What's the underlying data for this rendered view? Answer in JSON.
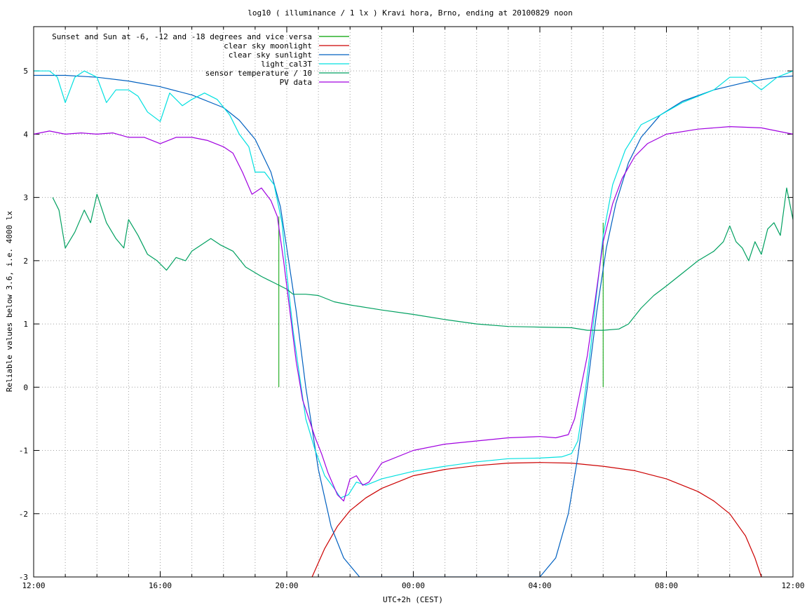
{
  "chart_data": {
    "type": "line",
    "title": "log10 ( illuminance / 1 lx ) Kravi hora, Brno, ending at 20100829 noon",
    "xlabel": "UTC+2h (CEST)",
    "ylabel": "Reliable values below 3.6, i.e. 4000 lx",
    "xlim": [
      12,
      36
    ],
    "ylim": [
      -3,
      5.7
    ],
    "x_tick_labels": [
      {
        "x": 12,
        "label": "12:00"
      },
      {
        "x": 16,
        "label": "16:00"
      },
      {
        "x": 20,
        "label": "20:00"
      },
      {
        "x": 24,
        "label": "00:00"
      },
      {
        "x": 28,
        "label": "04:00"
      },
      {
        "x": 32,
        "label": "08:00"
      },
      {
        "x": 36,
        "label": "12:00"
      }
    ],
    "x_minor_ticks": [
      13,
      14,
      15,
      17,
      18,
      19,
      21,
      22,
      23,
      25,
      26,
      27,
      29,
      30,
      31,
      33,
      34,
      35
    ],
    "y_ticks": [
      -3,
      -2,
      -1,
      0,
      1,
      2,
      3,
      4,
      5
    ],
    "grid": true,
    "legend_position": "top-left",
    "series": [
      {
        "name": "Sunset and Sun at -6, -12 and -18 degrees and vice versa",
        "color": "#00a000",
        "style": "impulses",
        "points": [
          [
            19.75,
            2.7
          ],
          [
            21.0,
            0
          ],
          [
            21.75,
            0
          ],
          [
            28.15,
            0
          ],
          [
            28.85,
            0
          ],
          [
            30.0,
            2.6
          ]
        ]
      },
      {
        "name": "clear sky moonlight",
        "color": "#cc0000",
        "points": [
          [
            20.8,
            -3.0
          ],
          [
            21.2,
            -2.55
          ],
          [
            21.6,
            -2.2
          ],
          [
            22.0,
            -1.95
          ],
          [
            22.5,
            -1.75
          ],
          [
            23.0,
            -1.6
          ],
          [
            23.5,
            -1.5
          ],
          [
            24.0,
            -1.4
          ],
          [
            25.0,
            -1.3
          ],
          [
            26.0,
            -1.24
          ],
          [
            27.0,
            -1.2
          ],
          [
            28.0,
            -1.19
          ],
          [
            29.0,
            -1.2
          ],
          [
            30.0,
            -1.25
          ],
          [
            31.0,
            -1.32
          ],
          [
            32.0,
            -1.45
          ],
          [
            33.0,
            -1.65
          ],
          [
            33.5,
            -1.8
          ],
          [
            34.0,
            -2.0
          ],
          [
            34.5,
            -2.35
          ],
          [
            34.8,
            -2.7
          ],
          [
            35.0,
            -3.0
          ]
        ]
      },
      {
        "name": "clear sky sunlight",
        "color": "#0060c0",
        "points": [
          [
            12.0,
            4.93
          ],
          [
            13.0,
            4.93
          ],
          [
            14.0,
            4.9
          ],
          [
            15.0,
            4.84
          ],
          [
            16.0,
            4.75
          ],
          [
            17.0,
            4.62
          ],
          [
            18.0,
            4.42
          ],
          [
            18.5,
            4.22
          ],
          [
            19.0,
            3.92
          ],
          [
            19.5,
            3.4
          ],
          [
            19.8,
            2.85
          ],
          [
            20.0,
            2.2
          ],
          [
            20.3,
            1.2
          ],
          [
            20.6,
            0.0
          ],
          [
            21.0,
            -1.3
          ],
          [
            21.4,
            -2.2
          ],
          [
            21.8,
            -2.7
          ],
          [
            22.3,
            -3.0
          ],
          [
            28.0,
            -3.0
          ],
          [
            28.5,
            -2.7
          ],
          [
            28.9,
            -2.0
          ],
          [
            29.2,
            -1.1
          ],
          [
            29.5,
            0.0
          ],
          [
            29.8,
            1.2
          ],
          [
            30.1,
            2.2
          ],
          [
            30.4,
            2.9
          ],
          [
            30.8,
            3.55
          ],
          [
            31.2,
            3.95
          ],
          [
            31.8,
            4.3
          ],
          [
            32.5,
            4.52
          ],
          [
            33.5,
            4.7
          ],
          [
            34.5,
            4.82
          ],
          [
            35.5,
            4.9
          ],
          [
            36.0,
            4.92
          ]
        ]
      },
      {
        "name": "light_cal3T",
        "color": "#00e0e0",
        "points": [
          [
            12.0,
            5.0
          ],
          [
            12.5,
            5.0
          ],
          [
            12.75,
            4.9
          ],
          [
            13.0,
            4.5
          ],
          [
            13.3,
            4.9
          ],
          [
            13.6,
            5.0
          ],
          [
            14.0,
            4.9
          ],
          [
            14.3,
            4.5
          ],
          [
            14.6,
            4.7
          ],
          [
            15.0,
            4.7
          ],
          [
            15.3,
            4.6
          ],
          [
            15.6,
            4.35
          ],
          [
            16.0,
            4.2
          ],
          [
            16.3,
            4.65
          ],
          [
            16.7,
            4.45
          ],
          [
            17.0,
            4.55
          ],
          [
            17.4,
            4.65
          ],
          [
            17.8,
            4.55
          ],
          [
            18.2,
            4.3
          ],
          [
            18.5,
            4.0
          ],
          [
            18.8,
            3.8
          ],
          [
            19.0,
            3.4
          ],
          [
            19.3,
            3.4
          ],
          [
            19.6,
            3.2
          ],
          [
            19.85,
            2.6
          ],
          [
            20.0,
            1.8
          ],
          [
            20.2,
            0.9
          ],
          [
            20.4,
            0.2
          ],
          [
            20.6,
            -0.5
          ],
          [
            20.9,
            -1.0
          ],
          [
            21.2,
            -1.4
          ],
          [
            21.5,
            -1.6
          ],
          [
            21.7,
            -1.75
          ],
          [
            21.95,
            -1.7
          ],
          [
            22.2,
            -1.5
          ],
          [
            22.5,
            -1.55
          ],
          [
            23.0,
            -1.45
          ],
          [
            24.0,
            -1.33
          ],
          [
            25.0,
            -1.25
          ],
          [
            26.0,
            -1.18
          ],
          [
            27.0,
            -1.13
          ],
          [
            28.0,
            -1.12
          ],
          [
            28.7,
            -1.1
          ],
          [
            29.0,
            -1.05
          ],
          [
            29.2,
            -0.85
          ],
          [
            29.4,
            -0.2
          ],
          [
            29.6,
            0.6
          ],
          [
            29.8,
            1.5
          ],
          [
            30.0,
            2.4
          ],
          [
            30.3,
            3.2
          ],
          [
            30.7,
            3.75
          ],
          [
            31.2,
            4.15
          ],
          [
            31.8,
            4.3
          ],
          [
            32.5,
            4.5
          ],
          [
            33.5,
            4.7
          ],
          [
            34.0,
            4.9
          ],
          [
            34.5,
            4.9
          ],
          [
            35.0,
            4.7
          ],
          [
            35.5,
            4.9
          ],
          [
            36.0,
            5.0
          ]
        ]
      },
      {
        "name": "sensor temperature / 10",
        "color": "#00a060",
        "points": [
          [
            12.6,
            3.0
          ],
          [
            12.8,
            2.8
          ],
          [
            13.0,
            2.2
          ],
          [
            13.3,
            2.45
          ],
          [
            13.6,
            2.8
          ],
          [
            13.8,
            2.6
          ],
          [
            14.0,
            3.05
          ],
          [
            14.3,
            2.6
          ],
          [
            14.6,
            2.35
          ],
          [
            14.85,
            2.2
          ],
          [
            15.0,
            2.65
          ],
          [
            15.3,
            2.4
          ],
          [
            15.6,
            2.1
          ],
          [
            15.9,
            2.0
          ],
          [
            16.2,
            1.85
          ],
          [
            16.5,
            2.05
          ],
          [
            16.8,
            2.0
          ],
          [
            17.0,
            2.15
          ],
          [
            17.3,
            2.25
          ],
          [
            17.6,
            2.35
          ],
          [
            17.9,
            2.25
          ],
          [
            18.3,
            2.15
          ],
          [
            18.7,
            1.9
          ],
          [
            19.2,
            1.75
          ],
          [
            19.6,
            1.65
          ],
          [
            20.0,
            1.55
          ],
          [
            20.2,
            1.47
          ],
          [
            20.6,
            1.47
          ],
          [
            21.0,
            1.45
          ],
          [
            21.5,
            1.35
          ],
          [
            22.0,
            1.3
          ],
          [
            23.0,
            1.22
          ],
          [
            24.0,
            1.15
          ],
          [
            25.0,
            1.07
          ],
          [
            26.0,
            1.0
          ],
          [
            27.0,
            0.96
          ],
          [
            28.0,
            0.95
          ],
          [
            29.0,
            0.94
          ],
          [
            29.5,
            0.9
          ],
          [
            30.0,
            0.9
          ],
          [
            30.5,
            0.92
          ],
          [
            30.8,
            1.0
          ],
          [
            31.2,
            1.25
          ],
          [
            31.6,
            1.45
          ],
          [
            32.0,
            1.6
          ],
          [
            32.5,
            1.8
          ],
          [
            33.0,
            2.0
          ],
          [
            33.5,
            2.15
          ],
          [
            33.8,
            2.3
          ],
          [
            34.0,
            2.55
          ],
          [
            34.2,
            2.3
          ],
          [
            34.4,
            2.2
          ],
          [
            34.6,
            2.0
          ],
          [
            34.8,
            2.3
          ],
          [
            35.0,
            2.1
          ],
          [
            35.2,
            2.5
          ],
          [
            35.4,
            2.6
          ],
          [
            35.6,
            2.4
          ],
          [
            35.8,
            3.15
          ],
          [
            36.0,
            2.65
          ]
        ]
      },
      {
        "name": "PV data",
        "color": "#a000e0",
        "points": [
          [
            12.0,
            4.0
          ],
          [
            12.5,
            4.05
          ],
          [
            13.0,
            4.0
          ],
          [
            13.5,
            4.02
          ],
          [
            14.0,
            4.0
          ],
          [
            14.5,
            4.02
          ],
          [
            15.0,
            3.95
          ],
          [
            15.5,
            3.95
          ],
          [
            16.0,
            3.85
          ],
          [
            16.5,
            3.95
          ],
          [
            17.0,
            3.95
          ],
          [
            17.5,
            3.9
          ],
          [
            18.0,
            3.8
          ],
          [
            18.3,
            3.7
          ],
          [
            18.6,
            3.4
          ],
          [
            18.9,
            3.05
          ],
          [
            19.2,
            3.15
          ],
          [
            19.5,
            2.95
          ],
          [
            19.7,
            2.7
          ],
          [
            19.9,
            2.0
          ],
          [
            20.1,
            1.2
          ],
          [
            20.3,
            0.4
          ],
          [
            20.5,
            -0.2
          ],
          [
            20.7,
            -0.5
          ],
          [
            20.9,
            -0.8
          ],
          [
            21.1,
            -1.05
          ],
          [
            21.3,
            -1.35
          ],
          [
            21.6,
            -1.7
          ],
          [
            21.8,
            -1.8
          ],
          [
            22.0,
            -1.45
          ],
          [
            22.2,
            -1.4
          ],
          [
            22.4,
            -1.55
          ],
          [
            22.6,
            -1.5
          ],
          [
            23.0,
            -1.2
          ],
          [
            24.0,
            -1.0
          ],
          [
            25.0,
            -0.9
          ],
          [
            26.0,
            -0.85
          ],
          [
            27.0,
            -0.8
          ],
          [
            28.0,
            -0.78
          ],
          [
            28.5,
            -0.8
          ],
          [
            28.9,
            -0.75
          ],
          [
            29.1,
            -0.5
          ],
          [
            29.3,
            0.0
          ],
          [
            29.5,
            0.5
          ],
          [
            29.7,
            1.2
          ],
          [
            30.0,
            2.3
          ],
          [
            30.3,
            2.9
          ],
          [
            30.6,
            3.3
          ],
          [
            31.0,
            3.65
          ],
          [
            31.4,
            3.85
          ],
          [
            32.0,
            4.0
          ],
          [
            33.0,
            4.08
          ],
          [
            34.0,
            4.12
          ],
          [
            35.0,
            4.1
          ],
          [
            36.0,
            4.0
          ]
        ]
      }
    ]
  }
}
